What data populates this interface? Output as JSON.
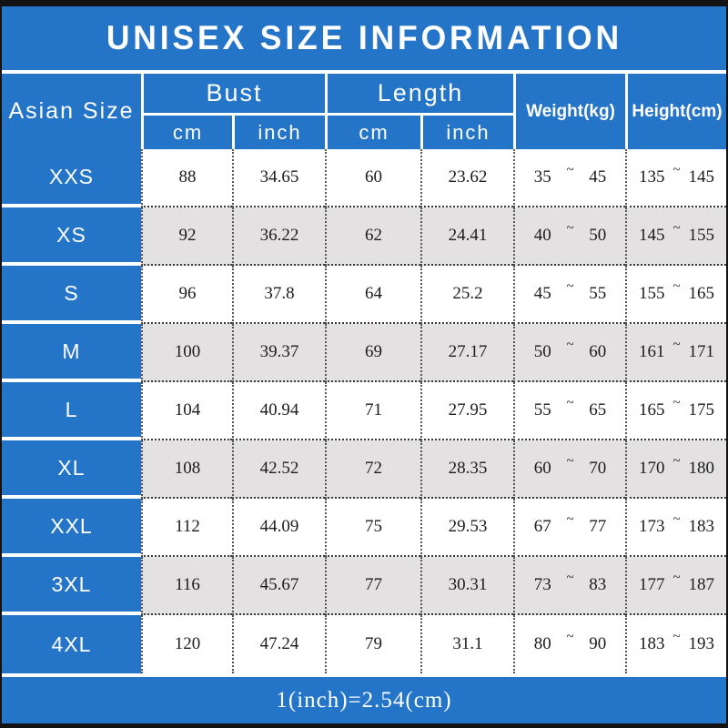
{
  "title": "UNISEX SIZE INFORMATION",
  "tilde": "~",
  "footer_note": "1(inch)=2.54(cm)",
  "columns": {
    "size": "Asian Size",
    "bust": "Bust",
    "length": "Length",
    "weight": "Weight(kg)",
    "height": "Height(cm)",
    "unit_cm": "cm",
    "unit_inch": "inch"
  },
  "colors": {
    "blue": "#2474c8",
    "gray_row": "#e3e1e2",
    "black_bar": "#131313",
    "header_text": "#ffffff",
    "number_text": "#1c1c1c"
  },
  "chart_data": {
    "type": "table",
    "title": "UNISEX SIZE INFORMATION",
    "columns": [
      "Asian Size",
      "Bust cm",
      "Bust inch",
      "Length cm",
      "Length inch",
      "Weight(kg)",
      "Height(cm)"
    ],
    "rows": [
      {
        "size": "XXS",
        "bust_cm": "88",
        "bust_inch": "34.65",
        "length_cm": "60",
        "length_inch": "23.62",
        "weight": [
          "35",
          "45"
        ],
        "height": [
          "135",
          "145"
        ]
      },
      {
        "size": "XS",
        "bust_cm": "92",
        "bust_inch": "36.22",
        "length_cm": "62",
        "length_inch": "24.41",
        "weight": [
          "40",
          "50"
        ],
        "height": [
          "145",
          "155"
        ]
      },
      {
        "size": "S",
        "bust_cm": "96",
        "bust_inch": "37.8",
        "length_cm": "64",
        "length_inch": "25.2",
        "weight": [
          "45",
          "55"
        ],
        "height": [
          "155",
          "165"
        ]
      },
      {
        "size": "M",
        "bust_cm": "100",
        "bust_inch": "39.37",
        "length_cm": "69",
        "length_inch": "27.17",
        "weight": [
          "50",
          "60"
        ],
        "height": [
          "161",
          "171"
        ]
      },
      {
        "size": "L",
        "bust_cm": "104",
        "bust_inch": "40.94",
        "length_cm": "71",
        "length_inch": "27.95",
        "weight": [
          "55",
          "65"
        ],
        "height": [
          "165",
          "175"
        ]
      },
      {
        "size": "XL",
        "bust_cm": "108",
        "bust_inch": "42.52",
        "length_cm": "72",
        "length_inch": "28.35",
        "weight": [
          "60",
          "70"
        ],
        "height": [
          "170",
          "180"
        ]
      },
      {
        "size": "XXL",
        "bust_cm": "112",
        "bust_inch": "44.09",
        "length_cm": "75",
        "length_inch": "29.53",
        "weight": [
          "67",
          "77"
        ],
        "height": [
          "173",
          "183"
        ]
      },
      {
        "size": "3XL",
        "bust_cm": "116",
        "bust_inch": "45.67",
        "length_cm": "77",
        "length_inch": "30.31",
        "weight": [
          "73",
          "83"
        ],
        "height": [
          "177",
          "187"
        ]
      },
      {
        "size": "4XL",
        "bust_cm": "120",
        "bust_inch": "47.24",
        "length_cm": "79",
        "length_inch": "31.1",
        "weight": [
          "80",
          "90"
        ],
        "height": [
          "183",
          "193"
        ]
      }
    ]
  }
}
